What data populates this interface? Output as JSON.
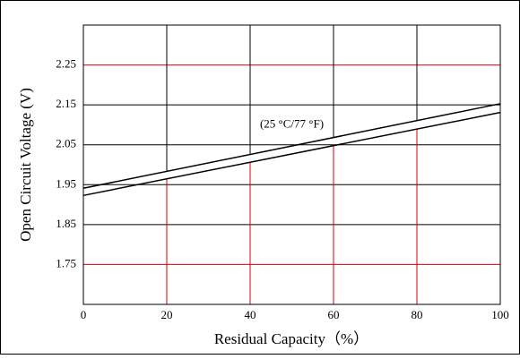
{
  "chart_data": {
    "type": "line",
    "xlabel": "Residual Capacity（%）",
    "ylabel": "Open Circuit Voltage (V)",
    "annotation": {
      "text": "(25 °C/77 °F)",
      "x": 50,
      "y": 2.1
    },
    "x": [
      0,
      100
    ],
    "series": [
      {
        "color": "#000000",
        "values": [
          1.941,
          2.153
        ]
      },
      {
        "color": "#000000",
        "values": [
          1.923,
          2.131
        ]
      }
    ],
    "xlim": [
      0,
      100
    ],
    "xticks": [
      0,
      20,
      40,
      60,
      80,
      100
    ],
    "ylim": [
      1.65,
      2.35
    ],
    "yticks": [
      1.75,
      1.85,
      1.95,
      2.05,
      2.15,
      2.25
    ],
    "grid": true,
    "grid_color": "#000000",
    "accent_grid_color": "#e00000",
    "ytick_grid_colors": [
      "#e00000",
      "#000000",
      "#000000",
      "#000000",
      "#000000",
      "#e00000"
    ]
  }
}
